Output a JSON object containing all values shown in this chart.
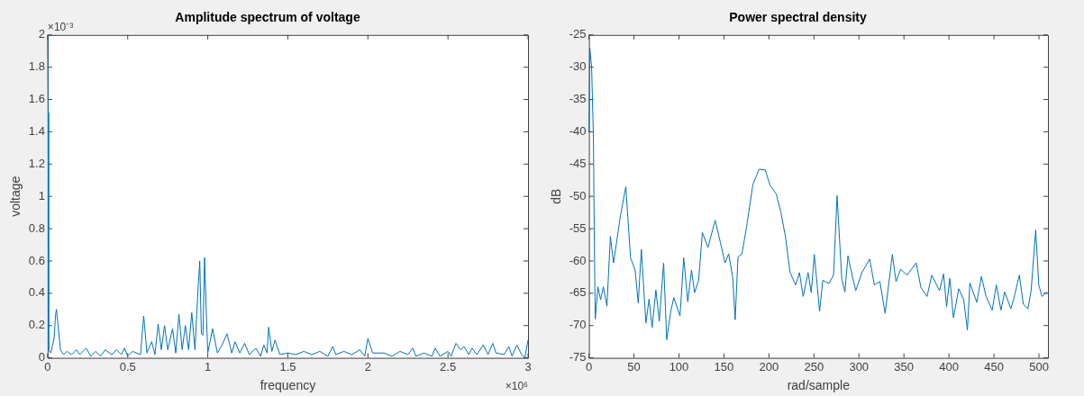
{
  "chart_data": [
    {
      "type": "line",
      "title": "Amplitude spectrum of voltage",
      "xlabel": "frequency",
      "ylabel": "voltage",
      "annotations": [
        "×10⁻³",
        "×10⁶"
      ],
      "xlim": [
        0,
        3
      ],
      "xticks": [
        0,
        0.5,
        1,
        1.5,
        2,
        2.5,
        3
      ],
      "ylim": [
        0,
        2
      ],
      "yticks": [
        0,
        0.2,
        0.4,
        0.6,
        0.8,
        1,
        1.2,
        1.4,
        1.6,
        1.8,
        2
      ],
      "grid": false,
      "legend": false,
      "series": [
        {
          "color": "#0072bd",
          "x": [
            0,
            0.003,
            0.006,
            0.02,
            0.04,
            0.05,
            0.055,
            0.065,
            0.08,
            0.1,
            0.12,
            0.15,
            0.18,
            0.2,
            0.24,
            0.27,
            0.3,
            0.33,
            0.36,
            0.4,
            0.43,
            0.46,
            0.48,
            0.5,
            0.53,
            0.58,
            0.6,
            0.62,
            0.65,
            0.67,
            0.69,
            0.71,
            0.73,
            0.75,
            0.78,
            0.8,
            0.82,
            0.84,
            0.86,
            0.88,
            0.9,
            0.92,
            0.94,
            0.95,
            0.96,
            0.97,
            0.98,
            0.99,
            1.0,
            1.03,
            1.06,
            1.09,
            1.12,
            1.15,
            1.17,
            1.2,
            1.23,
            1.26,
            1.3,
            1.33,
            1.35,
            1.37,
            1.38,
            1.4,
            1.42,
            1.45,
            1.5,
            1.55,
            1.6,
            1.65,
            1.7,
            1.75,
            1.78,
            1.8,
            1.85,
            1.9,
            1.95,
            1.98,
            2.0,
            2.03,
            2.1,
            2.15,
            2.2,
            2.25,
            2.28,
            2.3,
            2.35,
            2.4,
            2.42,
            2.45,
            2.5,
            2.52,
            2.55,
            2.58,
            2.6,
            2.63,
            2.65,
            2.68,
            2.72,
            2.75,
            2.78,
            2.8,
            2.85,
            2.88,
            2.9,
            2.93,
            2.96,
            2.98,
            3.0
          ],
          "values": [
            2.0,
            1.52,
            0.05,
            0.03,
            0.12,
            0.27,
            0.3,
            0.2,
            0.05,
            0.02,
            0.04,
            0.02,
            0.05,
            0.02,
            0.06,
            0.01,
            0.04,
            0.01,
            0.05,
            0.02,
            0.05,
            0.02,
            0.06,
            0.01,
            0.04,
            0.02,
            0.26,
            0.03,
            0.1,
            0.02,
            0.21,
            0.05,
            0.2,
            0.05,
            0.18,
            0.03,
            0.27,
            0.05,
            0.2,
            0.05,
            0.28,
            0.05,
            0.44,
            0.6,
            0.15,
            0.14,
            0.62,
            0.3,
            0.03,
            0.18,
            0.03,
            0.08,
            0.15,
            0.03,
            0.1,
            0.03,
            0.09,
            0.02,
            0.06,
            0.01,
            0.08,
            0.03,
            0.19,
            0.04,
            0.11,
            0.02,
            0.03,
            0.02,
            0.04,
            0.02,
            0.04,
            0.01,
            0.07,
            0.02,
            0.04,
            0.02,
            0.05,
            0.01,
            0.12,
            0.03,
            0.03,
            0.01,
            0.04,
            0.02,
            0.06,
            0.01,
            0.03,
            0.01,
            0.06,
            0.01,
            0.04,
            0.01,
            0.09,
            0.05,
            0.07,
            0.02,
            0.06,
            0.02,
            0.08,
            0.02,
            0.09,
            0.03,
            0.02,
            0.07,
            0.01,
            0.08,
            0.02,
            0.0,
            0.11
          ]
        }
      ]
    },
    {
      "type": "line",
      "title": "Power spectral density",
      "xlabel": "rad/sample",
      "ylabel": "dB",
      "xlim": [
        0,
        510
      ],
      "xticks": [
        0,
        50,
        100,
        150,
        200,
        250,
        300,
        350,
        400,
        450,
        500
      ],
      "ylim": [
        -75,
        -25
      ],
      "yticks": [
        -75,
        -70,
        -65,
        -60,
        -55,
        -50,
        -45,
        -40,
        -35,
        -30,
        -25
      ],
      "grid": false,
      "legend": false,
      "series": [
        {
          "color": "#0072bd",
          "x": [
            0,
            1,
            3,
            5,
            6,
            7,
            10,
            13,
            16,
            20,
            23.8,
            27.3,
            30.7,
            35,
            41,
            46.2,
            51.3,
            54.8,
            58.2,
            63.3,
            66.8,
            70.2,
            74.4,
            78.2,
            83,
            86.4,
            90.9,
            94.3,
            101.2,
            105.3,
            109.8,
            114,
            117.4,
            121.9,
            126,
            132.3,
            140.2,
            146,
            151.2,
            155.3,
            159.8,
            162.5,
            165.6,
            170,
            175.2,
            182.1,
            189,
            195.9,
            201,
            208,
            213.2,
            218.3,
            223.5,
            229.7,
            233.9,
            238,
            243.5,
            247,
            250.4,
            256.3,
            259.8,
            266.7,
            271.8,
            275.7,
            280.9,
            284.4,
            287.8,
            291.3,
            296.4,
            303.3,
            311.9,
            317.1,
            323.3,
            329.1,
            337.1,
            341.2,
            346.4,
            353.3,
            363.7,
            368.8,
            375.7,
            380.9,
            389.5,
            394,
            397.4,
            400.9,
            405,
            410.9,
            416.4,
            420.5,
            423.3,
            430.9,
            436.1,
            441.2,
            448.1,
            452.6,
            457.8,
            461.9,
            468.8,
            472.3,
            478.2,
            482.6,
            487.8,
            491.3,
            496.4,
            499.8,
            503.3,
            509.2
          ],
          "values": [
            -40,
            -27,
            -30,
            -41,
            -57,
            -69,
            -64,
            -66,
            -64,
            -67,
            -56.2,
            -60.3,
            -57.1,
            -53,
            -48.5,
            -59.5,
            -61.4,
            -66.5,
            -58.2,
            -69.6,
            -65.9,
            -70.3,
            -64.5,
            -69.3,
            -60.3,
            -72.2,
            -67.8,
            -65.7,
            -68.5,
            -59.5,
            -66.3,
            -61.4,
            -64.9,
            -63,
            -55.6,
            -57.9,
            -53.7,
            -57.1,
            -60.3,
            -58.9,
            -62.6,
            -69.1,
            -59.4,
            -58.9,
            -54.7,
            -48.2,
            -45.8,
            -45.9,
            -48.2,
            -49.6,
            -52.4,
            -56.2,
            -61.8,
            -63.7,
            -61.8,
            -65.5,
            -61.8,
            -64.9,
            -59,
            -67.8,
            -63,
            -63.5,
            -62.2,
            -49.9,
            -62.7,
            -64.8,
            -59.2,
            -61.5,
            -64.6,
            -61.8,
            -59.7,
            -63.7,
            -63.2,
            -68.1,
            -59,
            -63.2,
            -61.3,
            -62.2,
            -60.3,
            -64.1,
            -65.5,
            -62.2,
            -64.6,
            -62,
            -67.1,
            -62.7,
            -68.8,
            -64.3,
            -66,
            -70.7,
            -63.4,
            -66.4,
            -62.4,
            -65.5,
            -67.6,
            -63.7,
            -67.6,
            -64.8,
            -67.4,
            -65.7,
            -62.2,
            -66.7,
            -67.4,
            -64.6,
            -55.2,
            -63.7,
            -65.5,
            -64.8
          ]
        }
      ]
    }
  ]
}
